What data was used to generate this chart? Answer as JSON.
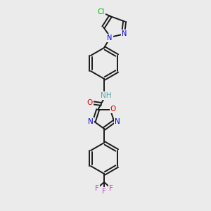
{
  "bg_color": "#ebebeb",
  "bond_color": "#1a1a1a",
  "atom_colors": {
    "N": "#0000dd",
    "O": "#dd0000",
    "Cl": "#00bb00",
    "F": "#cc44cc",
    "H": "#55aaaa",
    "C": "#1a1a1a"
  },
  "figsize": [
    3.0,
    3.0
  ],
  "dpi": 100
}
